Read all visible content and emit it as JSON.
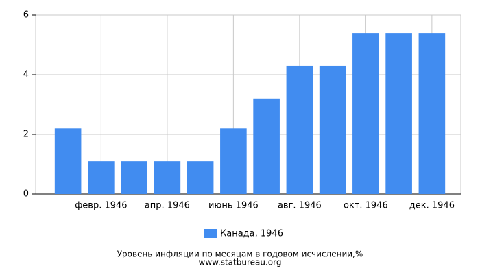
{
  "chart_data": {
    "type": "bar",
    "title": "Уровень инфляции по месяцам в годовом исчислении,%",
    "source": "www.statbureau.org",
    "categories": [
      null,
      "февр. 1946",
      null,
      "апр. 1946",
      null,
      "июнь 1946",
      null,
      "авг. 1946",
      null,
      "окт. 1946",
      null,
      "дек. 1946"
    ],
    "series": [
      {
        "name": "Канада, 1946",
        "color": "#418cf0",
        "values": [
          2.2,
          1.1,
          1.1,
          1.1,
          1.1,
          2.2,
          3.2,
          4.3,
          4.3,
          5.4,
          5.4,
          5.4
        ]
      }
    ],
    "ylim": [
      0,
      6
    ],
    "yticks": [
      0,
      2,
      4,
      6
    ],
    "grid": true
  }
}
